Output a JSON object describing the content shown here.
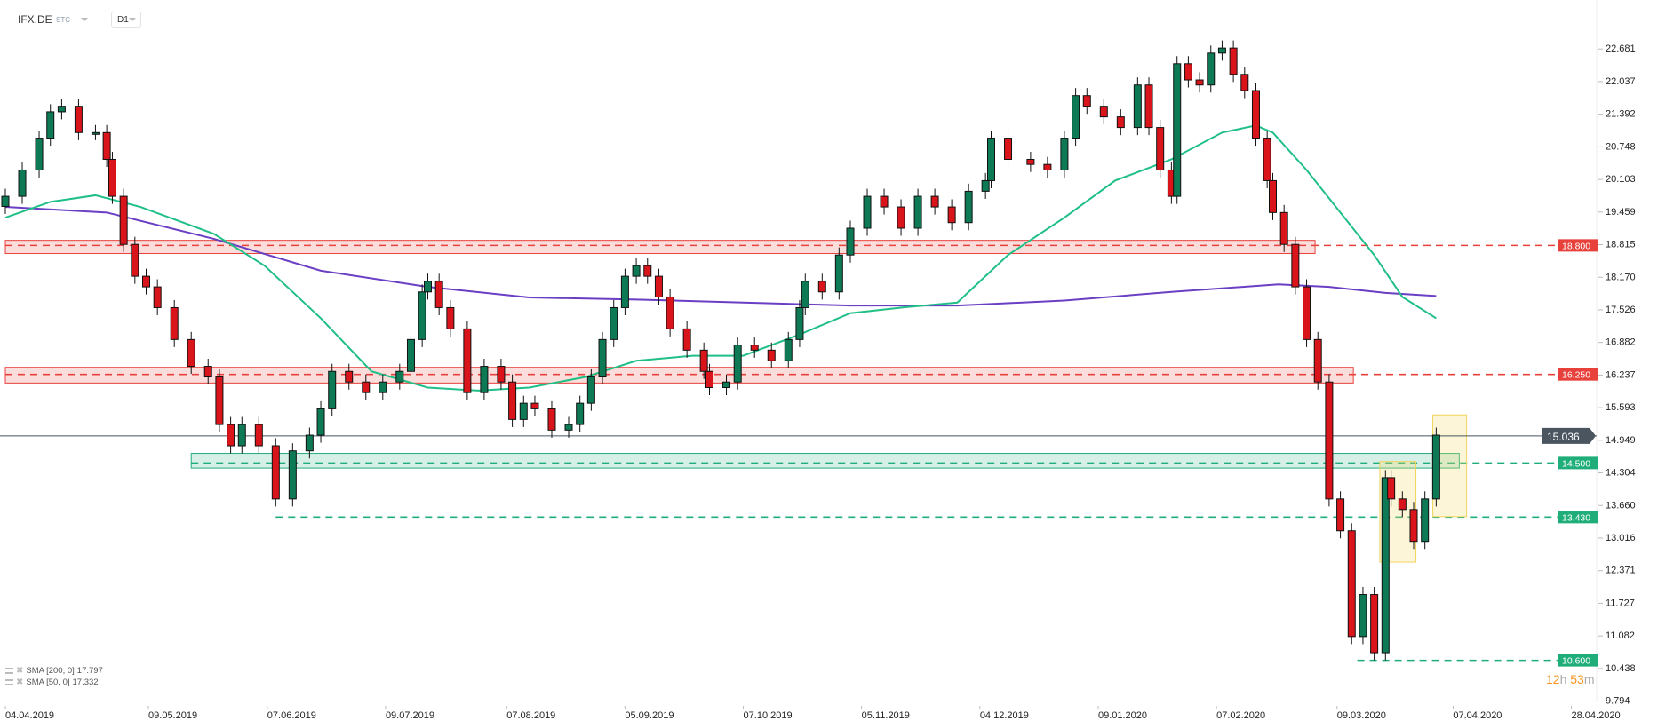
{
  "header": {
    "symbol": "IFX.DE",
    "type": "STC",
    "timeframe": "D1"
  },
  "legend": [
    {
      "name": "SMA [200, 0]",
      "value": "17.797",
      "color": "#6a3fc4"
    },
    {
      "name": "SMA [50, 0]",
      "value": "17.332",
      "color": "#1fbf86"
    }
  ],
  "timer": {
    "h": "12",
    "h_unit": "h",
    "m": "53",
    "m_unit": "m"
  },
  "chart_data": {
    "type": "candlestick",
    "title": "IFX.DE D1",
    "ylim": [
      9.4,
      23.65
    ],
    "xlim_days": [
      0,
      282
    ],
    "y_ticks": [
      "22.681",
      "22.037",
      "21.392",
      "20.748",
      "20.103",
      "19.459",
      "18.815",
      "18.170",
      "17.526",
      "16.882",
      "16.237",
      "15.593",
      "14.949",
      "14.304",
      "13.660",
      "13.016",
      "12.371",
      "11.727",
      "11.082",
      "10.438",
      "9.794"
    ],
    "x_ticks": [
      {
        "day": 0,
        "label": "04.04.2019"
      },
      {
        "day": 25.4,
        "label": "09.05.2019"
      },
      {
        "day": 46.5,
        "label": "07.06.2019"
      },
      {
        "day": 67.5,
        "label": "09.07.2019"
      },
      {
        "day": 89,
        "label": "07.08.2019"
      },
      {
        "day": 110,
        "label": "05.09.2019"
      },
      {
        "day": 131,
        "label": "07.10.2019"
      },
      {
        "day": 152,
        "label": "05.11.2019"
      },
      {
        "day": 173,
        "label": "04.12.2019"
      },
      {
        "day": 194,
        "label": "09.01.2020"
      },
      {
        "day": 215,
        "label": "07.02.2020"
      },
      {
        "day": 236.4,
        "label": "09.03.2020"
      },
      {
        "day": 257,
        "label": "07.04.2020"
      },
      {
        "day": 278,
        "label": "28.04.2020"
      }
    ],
    "colors": {
      "up": "#0e7a55",
      "down": "#d9141a",
      "sma200": "#6a3fc4",
      "sma50": "#1fbf86",
      "resistance": "#e8413c",
      "support": "#1fae7a",
      "current": "#4a5560"
    },
    "candles_day_close": [
      [
        0,
        19.77
      ],
      [
        3,
        20.29
      ],
      [
        6,
        20.92
      ],
      [
        8,
        21.44
      ],
      [
        10,
        21.55
      ],
      [
        13,
        21.03
      ],
      [
        16,
        21.03
      ],
      [
        18,
        20.5
      ],
      [
        19,
        19.77
      ],
      [
        21,
        18.82
      ],
      [
        23,
        18.19
      ],
      [
        25,
        17.98
      ],
      [
        27,
        17.57
      ],
      [
        30,
        16.94
      ],
      [
        33,
        16.41
      ],
      [
        36,
        16.2
      ],
      [
        38,
        15.26
      ],
      [
        40,
        14.84
      ],
      [
        42,
        15.26
      ],
      [
        45,
        14.84
      ],
      [
        48,
        13.79
      ],
      [
        51,
        14.74
      ],
      [
        54,
        15.05
      ],
      [
        56,
        15.57
      ],
      [
        58,
        16.31
      ],
      [
        61,
        16.1
      ],
      [
        64,
        15.89
      ],
      [
        67,
        16.1
      ],
      [
        70,
        16.31
      ],
      [
        72,
        16.94
      ],
      [
        74,
        17.88
      ],
      [
        75,
        18.09
      ],
      [
        77,
        17.57
      ],
      [
        79,
        17.15
      ],
      [
        82,
        15.89
      ],
      [
        85,
        16.41
      ],
      [
        88,
        16.1
      ],
      [
        90,
        15.36
      ],
      [
        92,
        15.68
      ],
      [
        94,
        15.57
      ],
      [
        97,
        15.15
      ],
      [
        100,
        15.26
      ],
      [
        102,
        15.68
      ],
      [
        104,
        16.2
      ],
      [
        106,
        16.94
      ],
      [
        108,
        17.57
      ],
      [
        110,
        18.19
      ],
      [
        112,
        18.4
      ],
      [
        114,
        18.19
      ],
      [
        116,
        17.78
      ],
      [
        118,
        17.15
      ],
      [
        121,
        16.73
      ],
      [
        124,
        16.31
      ],
      [
        125,
        15.99
      ],
      [
        128,
        16.1
      ],
      [
        130,
        16.83
      ],
      [
        133,
        16.73
      ],
      [
        136,
        16.52
      ],
      [
        139,
        16.94
      ],
      [
        141,
        17.57
      ],
      [
        142,
        18.09
      ],
      [
        145,
        17.88
      ],
      [
        148,
        18.61
      ],
      [
        150,
        19.14
      ],
      [
        153,
        19.77
      ],
      [
        156,
        19.56
      ],
      [
        159,
        19.14
      ],
      [
        162,
        19.77
      ],
      [
        165,
        19.56
      ],
      [
        168,
        19.25
      ],
      [
        171,
        19.87
      ],
      [
        174,
        20.08
      ],
      [
        175,
        20.92
      ],
      [
        178,
        20.5
      ],
      [
        182,
        20.4
      ],
      [
        185,
        20.29
      ],
      [
        188,
        20.92
      ],
      [
        190,
        21.76
      ],
      [
        192,
        21.55
      ],
      [
        195,
        21.34
      ],
      [
        198,
        21.13
      ],
      [
        201,
        21.97
      ],
      [
        203,
        21.13
      ],
      [
        205,
        20.29
      ],
      [
        207,
        19.77
      ],
      [
        208,
        22.39
      ],
      [
        210,
        22.07
      ],
      [
        212,
        21.97
      ],
      [
        214,
        22.6
      ],
      [
        216,
        22.7
      ],
      [
        218,
        22.18
      ],
      [
        220,
        21.86
      ],
      [
        222,
        20.92
      ],
      [
        224,
        20.08
      ],
      [
        225,
        19.45
      ],
      [
        227,
        18.82
      ],
      [
        229,
        17.98
      ],
      [
        231,
        16.94
      ],
      [
        233,
        16.1
      ],
      [
        235,
        13.79
      ],
      [
        237,
        13.16
      ],
      [
        239,
        11.07
      ],
      [
        241,
        11.9
      ],
      [
        243,
        10.75
      ],
      [
        245,
        14.21
      ],
      [
        246,
        13.79
      ],
      [
        248,
        13.58
      ],
      [
        250,
        12.95
      ],
      [
        252,
        13.79
      ],
      [
        254,
        15.05
      ]
    ],
    "series": [
      {
        "name": "SMA 200",
        "points": [
          [
            0,
            19.56
          ],
          [
            18,
            19.45
          ],
          [
            37,
            18.93
          ],
          [
            56,
            18.3
          ],
          [
            75,
            17.98
          ],
          [
            93,
            17.77
          ],
          [
            112,
            17.73
          ],
          [
            131,
            17.67
          ],
          [
            150,
            17.61
          ],
          [
            169,
            17.61
          ],
          [
            188,
            17.71
          ],
          [
            207,
            17.88
          ],
          [
            226,
            18.03
          ],
          [
            235,
            17.98
          ],
          [
            245,
            17.86
          ],
          [
            254,
            17.8
          ]
        ]
      },
      {
        "name": "SMA 50",
        "points": [
          [
            0,
            19.35
          ],
          [
            8,
            19.66
          ],
          [
            16,
            19.79
          ],
          [
            24,
            19.56
          ],
          [
            37,
            19.03
          ],
          [
            46,
            18.4
          ],
          [
            56,
            17.36
          ],
          [
            65,
            16.31
          ],
          [
            75,
            15.99
          ],
          [
            84,
            15.93
          ],
          [
            93,
            15.99
          ],
          [
            103,
            16.2
          ],
          [
            112,
            16.52
          ],
          [
            122,
            16.62
          ],
          [
            131,
            16.62
          ],
          [
            141,
            17.04
          ],
          [
            150,
            17.46
          ],
          [
            159,
            17.57
          ],
          [
            169,
            17.67
          ],
          [
            178,
            18.61
          ],
          [
            188,
            19.35
          ],
          [
            197,
            20.08
          ],
          [
            207,
            20.5
          ],
          [
            216,
            21.03
          ],
          [
            222,
            21.17
          ],
          [
            225,
            21.03
          ],
          [
            231,
            20.29
          ],
          [
            237,
            19.45
          ],
          [
            243,
            18.61
          ],
          [
            248,
            17.78
          ],
          [
            254,
            17.36
          ]
        ]
      }
    ],
    "levels": [
      {
        "label": "18.800",
        "price": 18.8,
        "kind": "resistance",
        "zone": [
          18.64,
          18.9
        ],
        "zone_days": [
          0,
          232.5
        ],
        "line_from_day": 0
      },
      {
        "label": "16.250",
        "price": 16.25,
        "kind": "resistance",
        "zone": [
          16.08,
          16.39
        ],
        "zone_days": [
          0,
          239.3
        ],
        "line_from_day": 0
      },
      {
        "label": "14.500",
        "price": 14.5,
        "kind": "support",
        "zone": [
          14.4,
          14.69
        ],
        "zone_days": [
          33,
          258.1
        ],
        "line_from_day": 33
      },
      {
        "label": "13.430",
        "price": 13.43,
        "kind": "support",
        "line_from_day": 48
      },
      {
        "label": "10.600",
        "price": 10.6,
        "kind": "support",
        "line_from_day": 240
      }
    ],
    "highlight_boxes": [
      {
        "days": [
          244,
          250.4
        ],
        "range": [
          12.54,
          14.53
        ]
      },
      {
        "days": [
          253.4,
          259.4
        ],
        "range": [
          13.44,
          15.45
        ]
      }
    ],
    "current_price": {
      "label": "15.036",
      "price": 15.036
    }
  }
}
